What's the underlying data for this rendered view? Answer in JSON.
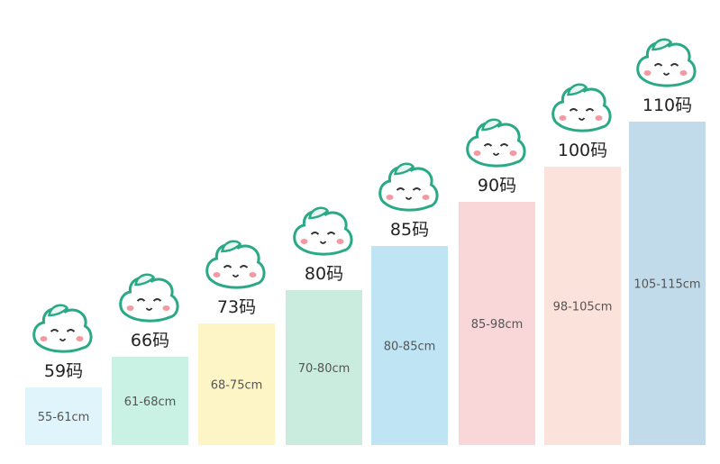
{
  "sizes": [
    {
      "label": "59码",
      "range": "55-61cm"
    },
    {
      "label": "66码",
      "range": "61-68cm"
    },
    {
      "label": "73码",
      "range": "68-75cm"
    },
    {
      "label": "80码",
      "range": "70-80cm"
    },
    {
      "label": "85码",
      "range": "80-85cm"
    },
    {
      "label": "90码",
      "range": "85-98cm"
    },
    {
      "label": "100码",
      "range": "98-105cm"
    },
    {
      "label": "110码",
      "range": "105-115cm"
    }
  ]
}
